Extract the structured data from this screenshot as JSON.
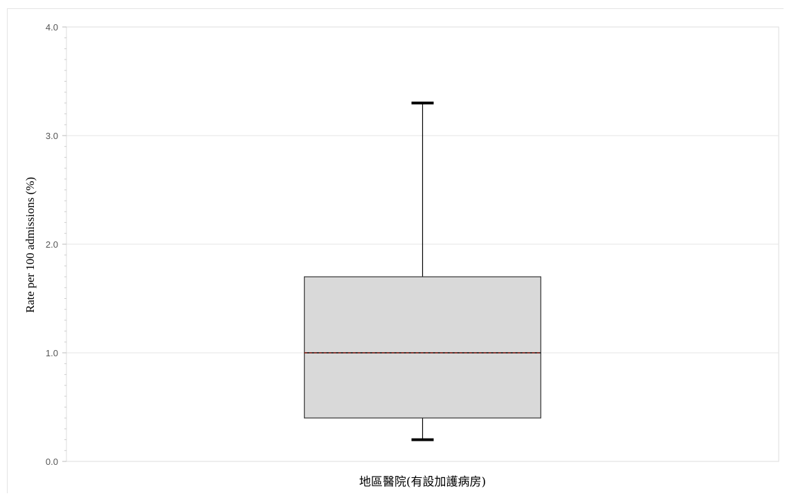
{
  "chart_data": {
    "type": "boxplot",
    "categories": [
      "地區醫院(有設加護病房)"
    ],
    "boxes": [
      {
        "category": "地區醫院(有設加護病房)",
        "whisker_low": 0.2,
        "q1": 0.4,
        "median": 1.0,
        "q3": 1.7,
        "whisker_high": 3.3
      }
    ],
    "ylabel": "Rate per 100 admissions (%)",
    "xlabel": "",
    "ylim": [
      0,
      4
    ],
    "yticks": [
      "0.0",
      "1.0",
      "2.0",
      "3.0",
      "4.0"
    ],
    "grid": true,
    "colors": {
      "box_fill": "#d9d9d9",
      "box_stroke": "#333333",
      "median": "#c0392b",
      "whisker": "#000000",
      "grid": "#e6e6e6"
    }
  }
}
